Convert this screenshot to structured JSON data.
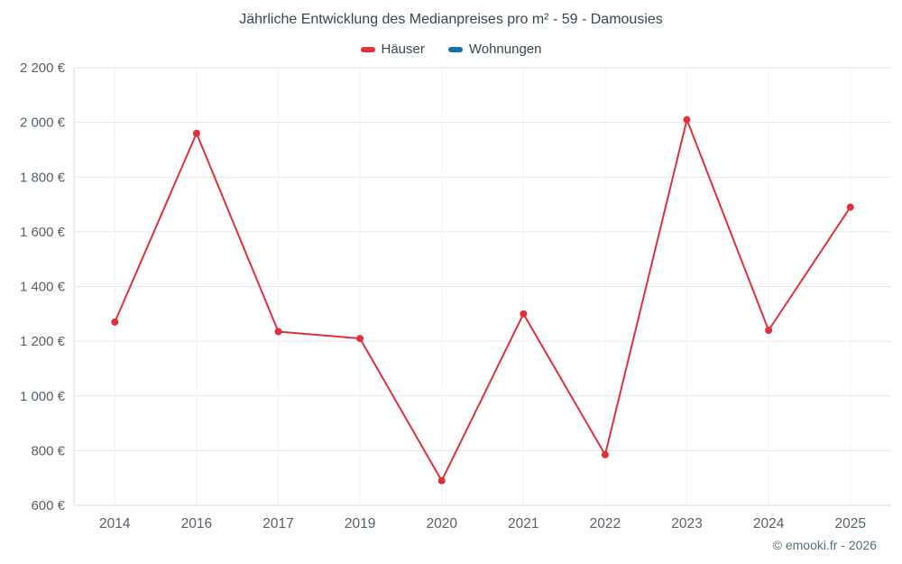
{
  "footer": {
    "credit": "© emooki.fr - 2026"
  },
  "chart_data": {
    "type": "line",
    "title": "Jährliche Entwicklung des Medianpreises pro m² - 59 - Damousies",
    "categories": [
      "2014",
      "2016",
      "2017",
      "2019",
      "2020",
      "2021",
      "2022",
      "2023",
      "2024",
      "2025"
    ],
    "series": [
      {
        "name": "Häuser",
        "color": "#e0313a",
        "values": [
          1270,
          1960,
          1235,
          1210,
          690,
          1300,
          785,
          2010,
          1240,
          1690
        ]
      },
      {
        "name": "Wohnungen",
        "color": "#1272a5",
        "values": []
      }
    ],
    "xlabel": "",
    "ylabel": "",
    "ylim": [
      600,
      2200
    ],
    "ytick_step": 200,
    "ytick_labels": [
      "600 €",
      "800 €",
      "1 000 €",
      "1 200 €",
      "1 400 €",
      "1 600 €",
      "1 800 €",
      "2 000 €",
      "2 200 €"
    ],
    "grid": true,
    "legend_position": "top",
    "colors": {
      "grid": "#e6e6e6",
      "grid_vertical": "#f0f0f0",
      "axis": "#d8d8d8",
      "tick_text": "#55616b",
      "title_text": "#37474f"
    }
  }
}
